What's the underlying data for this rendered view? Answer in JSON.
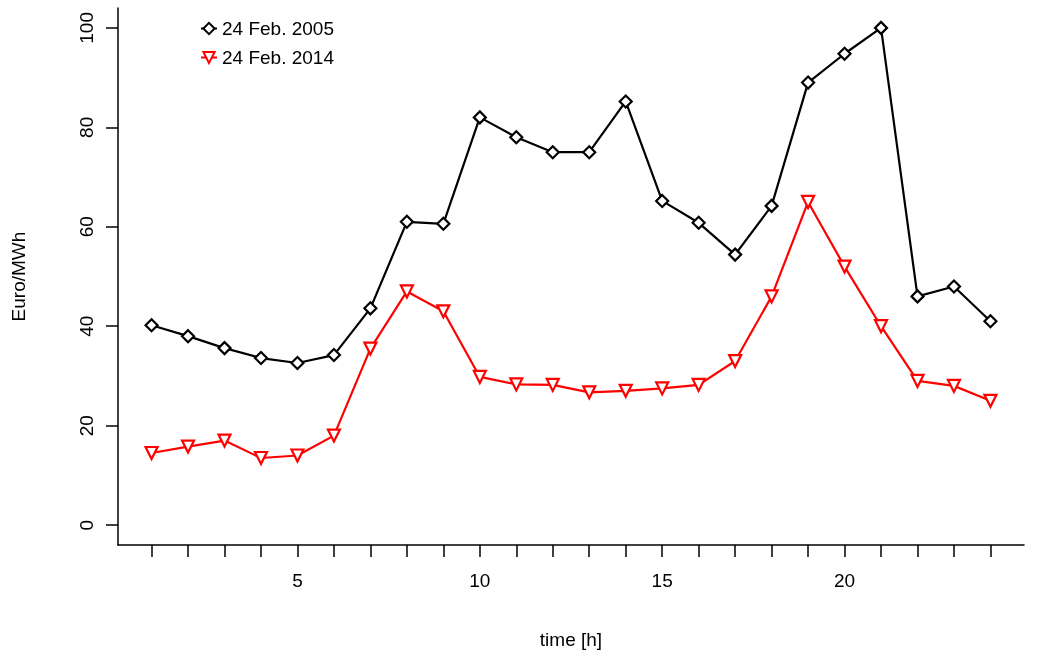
{
  "chart_data": {
    "type": "line",
    "xlabel": "time [h]",
    "ylabel": "Euro/MWh",
    "x": [
      1,
      2,
      3,
      4,
      5,
      6,
      7,
      8,
      9,
      10,
      11,
      12,
      13,
      14,
      15,
      16,
      17,
      18,
      19,
      20,
      21,
      22,
      23,
      24
    ],
    "series": [
      {
        "name": "24 Feb. 2005",
        "color": "#000000",
        "marker": "diamond",
        "values": [
          40.2,
          38,
          35.6,
          33.6,
          32.6,
          34.2,
          43.6,
          61,
          60.6,
          82,
          78,
          75,
          75,
          85.2,
          65.2,
          60.8,
          54.4,
          64.2,
          89,
          94.8,
          100,
          46,
          48,
          41
        ]
      },
      {
        "name": "24 Feb. 2014",
        "color": "#ff0000",
        "marker": "triangle-down",
        "values": [
          14.5,
          15.8,
          17,
          13.5,
          14,
          18,
          35.5,
          47,
          43,
          29.8,
          28.3,
          28.2,
          26.7,
          27,
          27.5,
          28.2,
          33,
          46,
          65,
          52,
          40,
          29,
          28,
          25
        ]
      }
    ],
    "xlim": [
      0.08,
      24.92
    ],
    "xticks": [
      {
        "value": 1,
        "label": null
      },
      {
        "value": 2,
        "label": null
      },
      {
        "value": 3,
        "label": null
      },
      {
        "value": 4,
        "label": null
      },
      5,
      {
        "value": 6,
        "label": null
      },
      {
        "value": 7,
        "label": null
      },
      {
        "value": 8,
        "label": null
      },
      {
        "value": 9,
        "label": null
      },
      10,
      {
        "value": 11,
        "label": null
      },
      {
        "value": 12,
        "label": null
      },
      {
        "value": 13,
        "label": null
      },
      {
        "value": 14,
        "label": null
      },
      15,
      {
        "value": 16,
        "label": null
      },
      {
        "value": 17,
        "label": null
      },
      {
        "value": 18,
        "label": null
      },
      {
        "value": 19,
        "label": null
      },
      20,
      {
        "value": 21,
        "label": null
      },
      {
        "value": 22,
        "label": null
      },
      {
        "value": 23,
        "label": null
      },
      {
        "value": 24,
        "label": null
      }
    ],
    "ylim": [
      -4,
      104
    ],
    "yticks": [
      0,
      20,
      40,
      60,
      80,
      100
    ],
    "grid": false,
    "legend": "top left",
    "line_style": "solid"
  }
}
